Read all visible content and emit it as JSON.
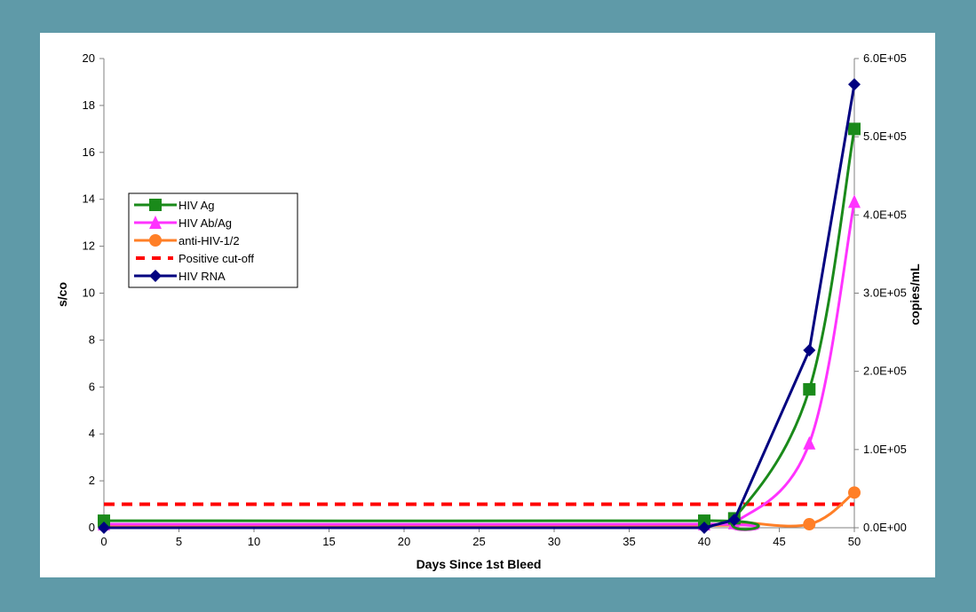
{
  "chart_data": {
    "type": "line",
    "title": "",
    "xlabel": "Days Since 1st Bleed",
    "ylabel": "s/co",
    "y2label": "copies/mL",
    "xlim": [
      0,
      50
    ],
    "ylim": [
      0,
      20
    ],
    "y2lim": [
      0,
      600000
    ],
    "x_ticks": [
      "0",
      "5",
      "10",
      "15",
      "20",
      "25",
      "30",
      "35",
      "40",
      "45",
      "50"
    ],
    "y_ticks": [
      "0",
      "2",
      "4",
      "6",
      "8",
      "10",
      "12",
      "14",
      "16",
      "18",
      "20"
    ],
    "y2_ticks": [
      "0.0E+00",
      "1.0E+05",
      "2.0E+05",
      "3.0E+05",
      "4.0E+05",
      "5.0E+05",
      "6.0E+05"
    ],
    "grid": false,
    "legend_position": "left-middle",
    "series": [
      {
        "name": "HIV Ag",
        "color": "#1a8a1a",
        "marker": "square",
        "axis": "left",
        "x": [
          0,
          40,
          42,
          47,
          50
        ],
        "y": [
          0.3,
          0.3,
          0.4,
          5.9,
          17.0
        ]
      },
      {
        "name": "HIV Ab/Ag",
        "color": "#ff33ff",
        "marker": "triangle",
        "axis": "left",
        "x": [
          0,
          40,
          42,
          47,
          50
        ],
        "y": [
          0.15,
          0.15,
          0.2,
          3.6,
          13.9
        ]
      },
      {
        "name": "anti-HIV-1/2",
        "color": "#ff7f27",
        "marker": "circle",
        "axis": "left",
        "x": [
          0,
          40,
          42,
          47,
          50
        ],
        "y": [
          0.1,
          0.1,
          0.25,
          0.15,
          1.5
        ]
      },
      {
        "name": "Positive cut-off",
        "color": "#ff0000",
        "marker": "none",
        "dashed": true,
        "axis": "left",
        "x": [
          0,
          50
        ],
        "y": [
          1,
          1
        ]
      },
      {
        "name": "HIV RNA",
        "color": "#000080",
        "marker": "diamond",
        "axis": "right",
        "x": [
          0,
          40,
          42,
          47,
          50
        ],
        "y": [
          0,
          0,
          10000,
          227000,
          567000
        ]
      }
    ]
  }
}
